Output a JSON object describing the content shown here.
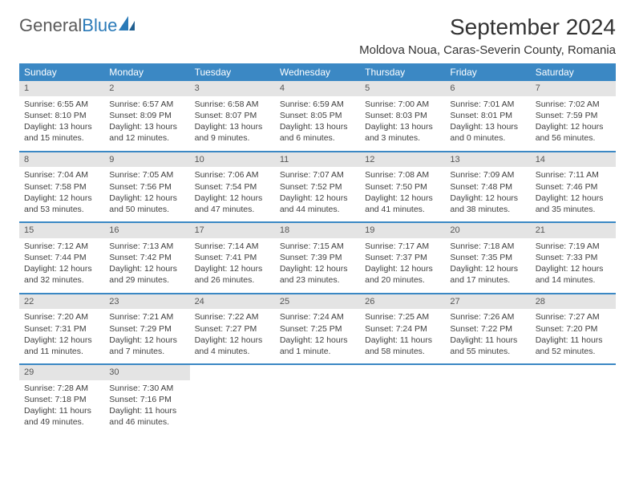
{
  "logo": {
    "text_general": "General",
    "text_blue": "Blue"
  },
  "header": {
    "title": "September 2024",
    "location": "Moldova Noua, Caras-Severin County, Romania"
  },
  "colors": {
    "header_bg": "#3b88c4",
    "header_fg": "#ffffff",
    "daynum_bg": "#e4e4e4",
    "row_border": "#3b88c4",
    "body_text": "#404040"
  },
  "weekdays": [
    "Sunday",
    "Monday",
    "Tuesday",
    "Wednesday",
    "Thursday",
    "Friday",
    "Saturday"
  ],
  "weeks": [
    [
      {
        "n": "1",
        "sr": "6:55 AM",
        "ss": "8:10 PM",
        "dl": "13 hours and 15 minutes."
      },
      {
        "n": "2",
        "sr": "6:57 AM",
        "ss": "8:09 PM",
        "dl": "13 hours and 12 minutes."
      },
      {
        "n": "3",
        "sr": "6:58 AM",
        "ss": "8:07 PM",
        "dl": "13 hours and 9 minutes."
      },
      {
        "n": "4",
        "sr": "6:59 AM",
        "ss": "8:05 PM",
        "dl": "13 hours and 6 minutes."
      },
      {
        "n": "5",
        "sr": "7:00 AM",
        "ss": "8:03 PM",
        "dl": "13 hours and 3 minutes."
      },
      {
        "n": "6",
        "sr": "7:01 AM",
        "ss": "8:01 PM",
        "dl": "13 hours and 0 minutes."
      },
      {
        "n": "7",
        "sr": "7:02 AM",
        "ss": "7:59 PM",
        "dl": "12 hours and 56 minutes."
      }
    ],
    [
      {
        "n": "8",
        "sr": "7:04 AM",
        "ss": "7:58 PM",
        "dl": "12 hours and 53 minutes."
      },
      {
        "n": "9",
        "sr": "7:05 AM",
        "ss": "7:56 PM",
        "dl": "12 hours and 50 minutes."
      },
      {
        "n": "10",
        "sr": "7:06 AM",
        "ss": "7:54 PM",
        "dl": "12 hours and 47 minutes."
      },
      {
        "n": "11",
        "sr": "7:07 AM",
        "ss": "7:52 PM",
        "dl": "12 hours and 44 minutes."
      },
      {
        "n": "12",
        "sr": "7:08 AM",
        "ss": "7:50 PM",
        "dl": "12 hours and 41 minutes."
      },
      {
        "n": "13",
        "sr": "7:09 AM",
        "ss": "7:48 PM",
        "dl": "12 hours and 38 minutes."
      },
      {
        "n": "14",
        "sr": "7:11 AM",
        "ss": "7:46 PM",
        "dl": "12 hours and 35 minutes."
      }
    ],
    [
      {
        "n": "15",
        "sr": "7:12 AM",
        "ss": "7:44 PM",
        "dl": "12 hours and 32 minutes."
      },
      {
        "n": "16",
        "sr": "7:13 AM",
        "ss": "7:42 PM",
        "dl": "12 hours and 29 minutes."
      },
      {
        "n": "17",
        "sr": "7:14 AM",
        "ss": "7:41 PM",
        "dl": "12 hours and 26 minutes."
      },
      {
        "n": "18",
        "sr": "7:15 AM",
        "ss": "7:39 PM",
        "dl": "12 hours and 23 minutes."
      },
      {
        "n": "19",
        "sr": "7:17 AM",
        "ss": "7:37 PM",
        "dl": "12 hours and 20 minutes."
      },
      {
        "n": "20",
        "sr": "7:18 AM",
        "ss": "7:35 PM",
        "dl": "12 hours and 17 minutes."
      },
      {
        "n": "21",
        "sr": "7:19 AM",
        "ss": "7:33 PM",
        "dl": "12 hours and 14 minutes."
      }
    ],
    [
      {
        "n": "22",
        "sr": "7:20 AM",
        "ss": "7:31 PM",
        "dl": "12 hours and 11 minutes."
      },
      {
        "n": "23",
        "sr": "7:21 AM",
        "ss": "7:29 PM",
        "dl": "12 hours and 7 minutes."
      },
      {
        "n": "24",
        "sr": "7:22 AM",
        "ss": "7:27 PM",
        "dl": "12 hours and 4 minutes."
      },
      {
        "n": "25",
        "sr": "7:24 AM",
        "ss": "7:25 PM",
        "dl": "12 hours and 1 minute."
      },
      {
        "n": "26",
        "sr": "7:25 AM",
        "ss": "7:24 PM",
        "dl": "11 hours and 58 minutes."
      },
      {
        "n": "27",
        "sr": "7:26 AM",
        "ss": "7:22 PM",
        "dl": "11 hours and 55 minutes."
      },
      {
        "n": "28",
        "sr": "7:27 AM",
        "ss": "7:20 PM",
        "dl": "11 hours and 52 minutes."
      }
    ],
    [
      {
        "n": "29",
        "sr": "7:28 AM",
        "ss": "7:18 PM",
        "dl": "11 hours and 49 minutes."
      },
      {
        "n": "30",
        "sr": "7:30 AM",
        "ss": "7:16 PM",
        "dl": "11 hours and 46 minutes."
      },
      null,
      null,
      null,
      null,
      null
    ]
  ],
  "labels": {
    "sunrise": "Sunrise: ",
    "sunset": "Sunset: ",
    "daylight": "Daylight: "
  }
}
